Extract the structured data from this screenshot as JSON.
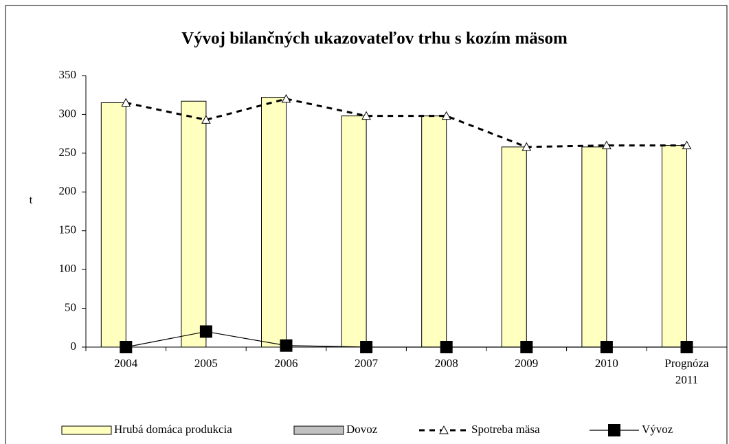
{
  "chart_data": {
    "type": "bar",
    "title": "Vývoj bilančných ukazovateľov  trhu s kozím mäsom",
    "y_label": "t",
    "categories": [
      "2004",
      "2005",
      "2006",
      "2007",
      "2008",
      "2009",
      "2010",
      "Prognóza 2011"
    ],
    "ylim": [
      0,
      350
    ],
    "yticks": [
      0,
      50,
      100,
      150,
      200,
      250,
      300,
      350
    ],
    "series": [
      {
        "name": "Hrubá domáca produkcia",
        "type": "bar",
        "color": "#ffffc0",
        "values": [
          315,
          317,
          322,
          298,
          298,
          258,
          258,
          260
        ]
      },
      {
        "name": "Dovoz",
        "type": "bar",
        "color": "#c0c0c0",
        "values": [
          0,
          0,
          0,
          0,
          0,
          0,
          0,
          0
        ]
      },
      {
        "name": "Spotreba mäsa",
        "type": "line",
        "dash": true,
        "marker": "triangle",
        "color": "#000000",
        "values": [
          315,
          293,
          320,
          298,
          298,
          258,
          260,
          260
        ]
      },
      {
        "name": "Vývoz",
        "type": "line",
        "dash": false,
        "marker": "square",
        "color": "#000000",
        "values": [
          0,
          20,
          2,
          0,
          0,
          0,
          0,
          0
        ]
      }
    ]
  }
}
